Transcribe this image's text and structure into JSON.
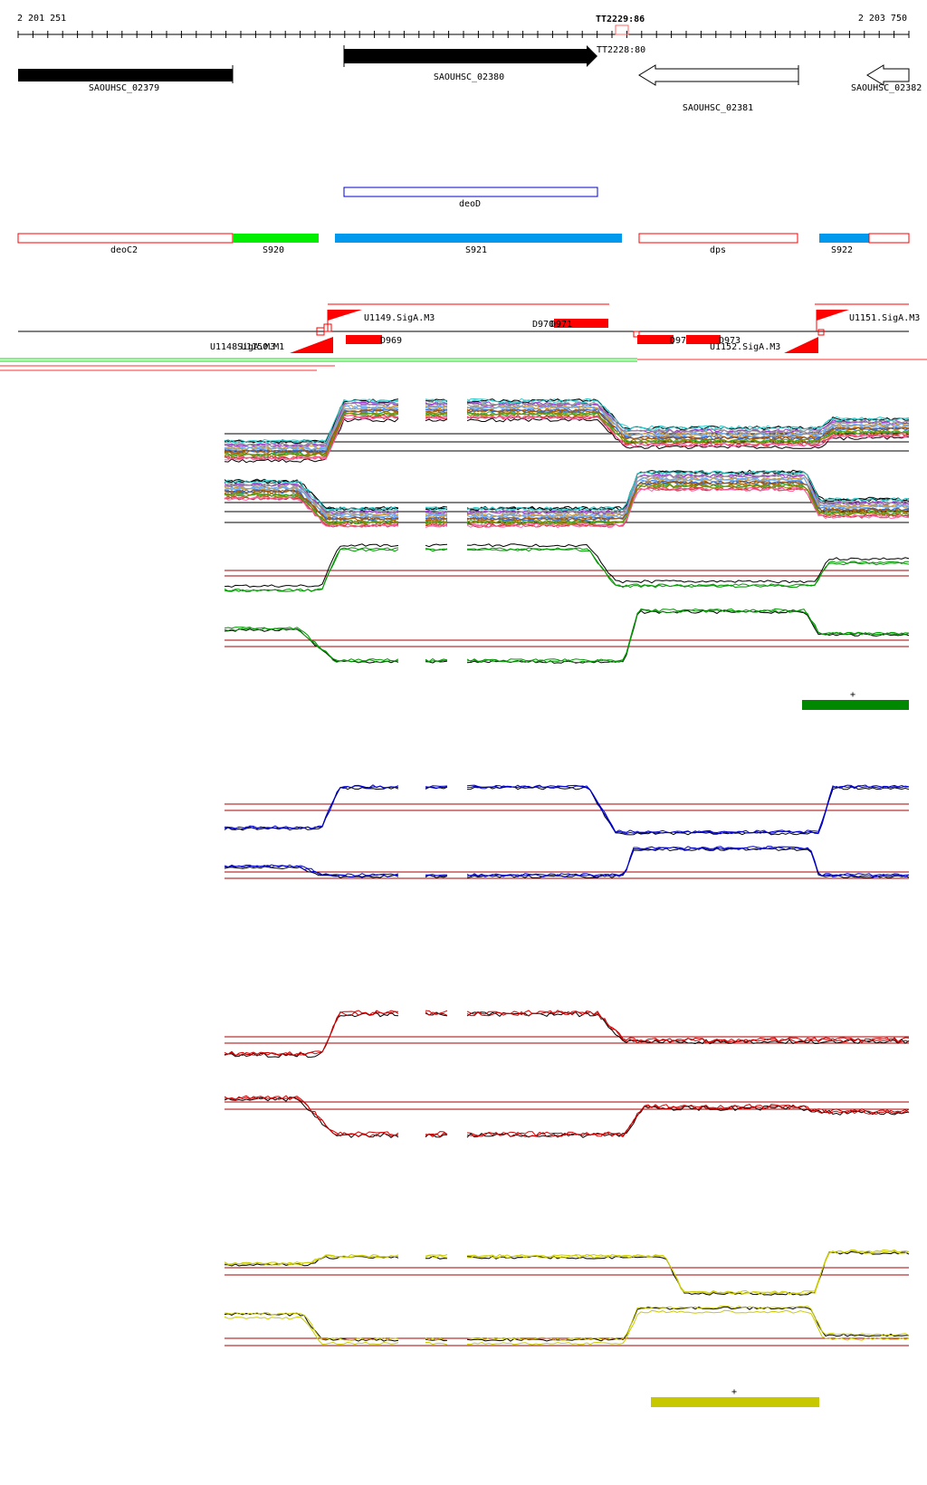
{
  "coordinates": {
    "start": "2 201 251",
    "end": "2 203 750",
    "center": "TT2229:86"
  },
  "terminators": [
    {
      "label": "TT2228:80"
    }
  ],
  "genes": [
    {
      "name": "SAOUHSC_02379",
      "strand": "+",
      "fill": "#000000"
    },
    {
      "name": "SAOUHSC_02380",
      "strand": "+",
      "fill": "#000000"
    },
    {
      "name": "SAOUHSC_02381",
      "strand": "-",
      "fill": "#ffffff"
    },
    {
      "name": "SAOUHSC_02382",
      "strand": "-",
      "fill": "#ffffff"
    }
  ],
  "operon": {
    "name": "deoD",
    "color": "#0000cc"
  },
  "segments": [
    {
      "name": "deoC2",
      "color": "#ff0000",
      "filled": false
    },
    {
      "name": "S920",
      "color": "#00ee00",
      "filled": true
    },
    {
      "name": "S921",
      "color": "#0099ee",
      "filled": true
    },
    {
      "name": "dps",
      "color": "#ff0000",
      "filled": false
    },
    {
      "name": "S922",
      "color": "#0099ee",
      "filled": true
    }
  ],
  "features": {
    "upper_labels": [
      "U1149.SigA.M3",
      "D970",
      "D971",
      "U1151.SigA.M3"
    ],
    "lower_labels": [
      "U1148",
      "U1150.M1",
      "SigA.M3",
      "D969",
      "D972",
      "D973",
      "U1152.SigA.M3"
    ]
  },
  "marks": [
    {
      "label": "+",
      "color": "#008800"
    },
    {
      "label": "+",
      "color": "#c8c800"
    }
  ],
  "panels": [
    {
      "id": "all",
      "colors": [
        "#000000",
        "#cc3333",
        "#33aa33",
        "#3366cc",
        "#cc9933",
        "#9933cc",
        "#33cccc",
        "#ff66aa",
        "#888800",
        "#aa5500",
        "#66aaff",
        "#999999"
      ]
    },
    {
      "id": "green",
      "color": "#009900"
    },
    {
      "id": "blue",
      "color": "#0000cc"
    },
    {
      "id": "red",
      "color": "#cc0000"
    },
    {
      "id": "yellow",
      "color": "#cccc00"
    }
  ]
}
